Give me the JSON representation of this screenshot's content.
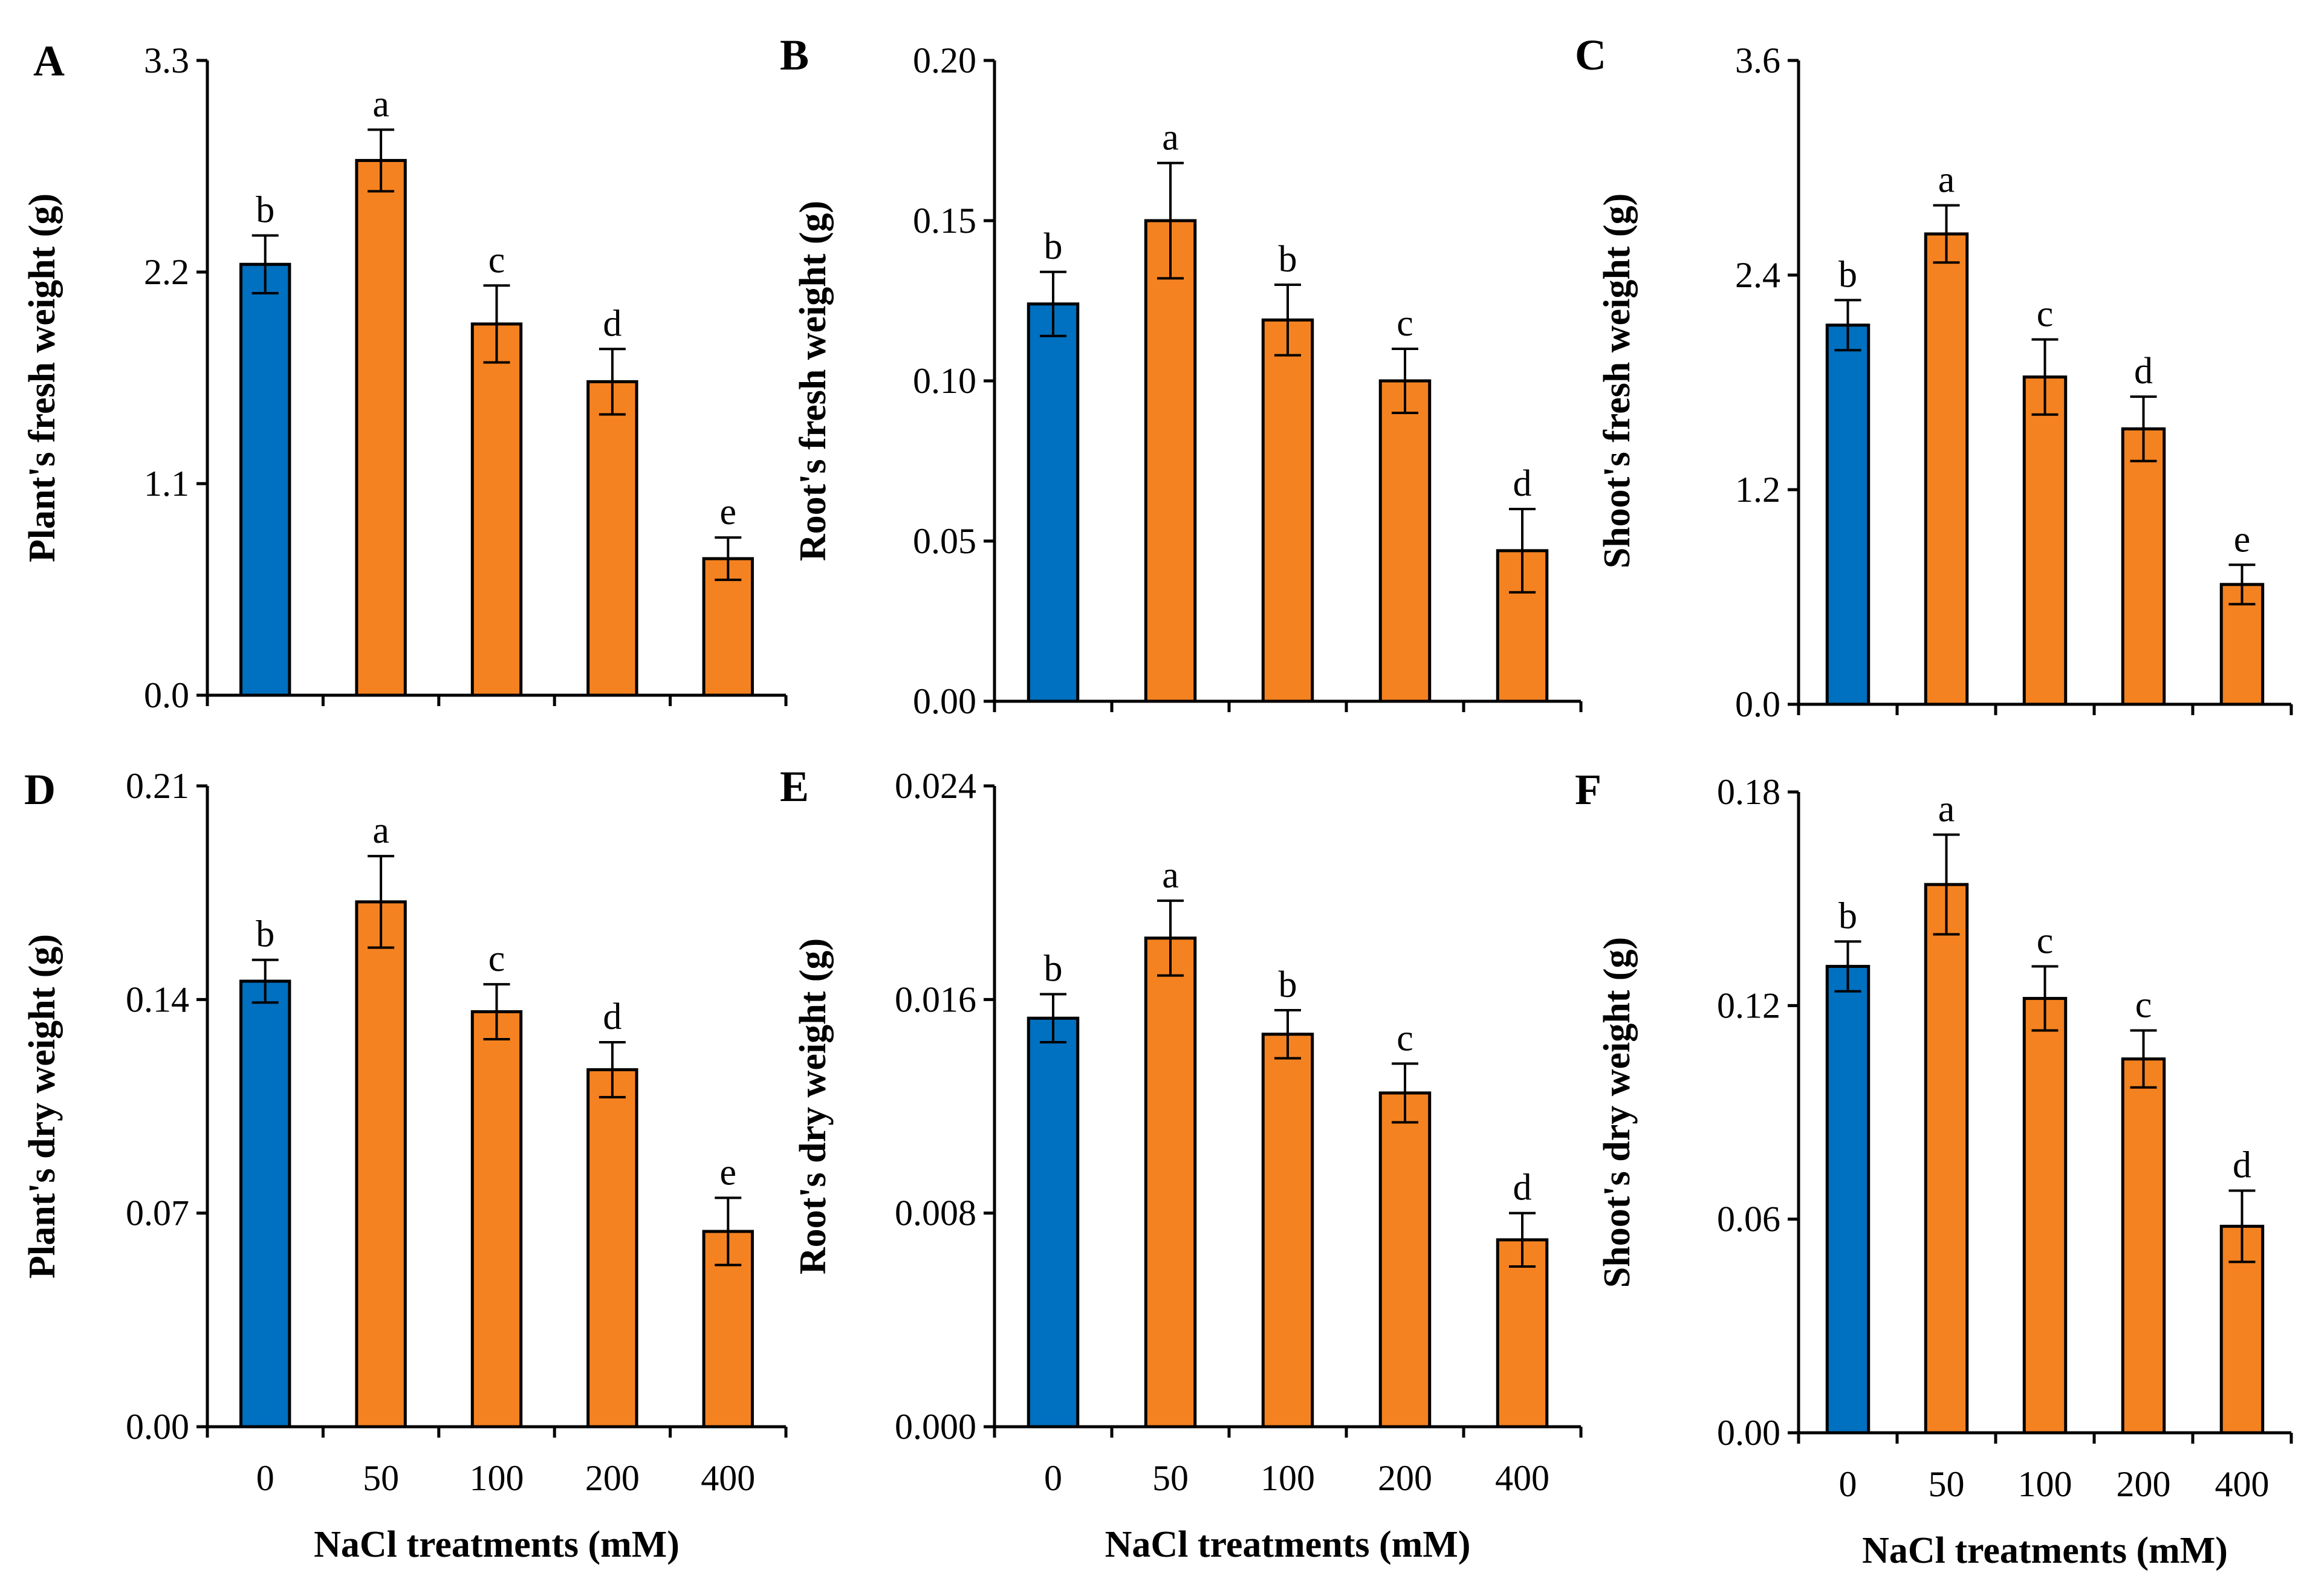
{
  "figure": {
    "colors": {
      "control": "#0070C0",
      "treatment": "#F58220",
      "axis": "#000000"
    },
    "x_categories": [
      "0",
      "50",
      "100",
      "200",
      "400"
    ]
  },
  "chart_data": [
    {
      "panel": "A",
      "type": "bar",
      "title": "",
      "xlabel": "",
      "ylabel": "Plant's fresh weight (g)",
      "categories": [
        "0",
        "50",
        "100",
        "200",
        "400"
      ],
      "values": [
        2.24,
        2.78,
        1.93,
        1.63,
        0.71
      ],
      "errors": [
        0.15,
        0.16,
        0.2,
        0.17,
        0.11
      ],
      "labels": [
        "b",
        "a",
        "c",
        "d",
        "e"
      ],
      "ylim": [
        0,
        3.3
      ],
      "yticks": [
        "0.0",
        "1.1",
        "2.2",
        "3.3"
      ]
    },
    {
      "panel": "B",
      "type": "bar",
      "title": "",
      "xlabel": "",
      "ylabel": "Root's fresh weight (g)",
      "categories": [
        "0",
        "50",
        "100",
        "200",
        "400"
      ],
      "values": [
        0.124,
        0.15,
        0.119,
        0.1,
        0.047
      ],
      "errors": [
        0.01,
        0.018,
        0.011,
        0.01,
        0.013
      ],
      "labels": [
        "b",
        "a",
        "b",
        "c",
        "d"
      ],
      "ylim": [
        0,
        0.2
      ],
      "yticks": [
        "0.00",
        "0.05",
        "0.10",
        "0.15",
        "0.20"
      ]
    },
    {
      "panel": "C",
      "type": "bar",
      "title": "",
      "xlabel": "",
      "ylabel": "Shoot's fresh weight (g)",
      "categories": [
        "0",
        "50",
        "100",
        "200",
        "400"
      ],
      "values": [
        2.12,
        2.63,
        1.83,
        1.54,
        0.67
      ],
      "errors": [
        0.14,
        0.16,
        0.21,
        0.18,
        0.11
      ],
      "labels": [
        "b",
        "a",
        "c",
        "d",
        "e"
      ],
      "ylim": [
        0,
        3.6
      ],
      "yticks": [
        "0.0",
        "1.2",
        "2.4",
        "3.6"
      ]
    },
    {
      "panel": "D",
      "type": "bar",
      "title": "",
      "xlabel": "NaCl treatments (mM)",
      "ylabel": "Plant's dry weight (g)",
      "categories": [
        "0",
        "50",
        "100",
        "200",
        "400"
      ],
      "values": [
        0.146,
        0.172,
        0.136,
        0.117,
        0.064
      ],
      "errors": [
        0.007,
        0.015,
        0.009,
        0.009,
        0.011
      ],
      "labels": [
        "b",
        "a",
        "c",
        "d",
        "e"
      ],
      "ylim": [
        0,
        0.21
      ],
      "yticks": [
        "0.00",
        "0.07",
        "0.14",
        "0.21"
      ]
    },
    {
      "panel": "E",
      "type": "bar",
      "title": "",
      "xlabel": "NaCl treatments (mM)",
      "ylabel": "Root's dry weight (g)",
      "categories": [
        "0",
        "50",
        "100",
        "200",
        "400"
      ],
      "values": [
        0.0153,
        0.0183,
        0.0147,
        0.0125,
        0.007
      ],
      "errors": [
        0.0009,
        0.0014,
        0.0009,
        0.0011,
        0.001
      ],
      "labels": [
        "b",
        "a",
        "b",
        "c",
        "d"
      ],
      "ylim": [
        0,
        0.024
      ],
      "yticks": [
        "0.000",
        "0.008",
        "0.016",
        "0.024"
      ]
    },
    {
      "panel": "F",
      "type": "bar",
      "title": "",
      "xlabel": "NaCl treatments (mM)",
      "ylabel": "Shoot's dry weight (g)",
      "categories": [
        "0",
        "50",
        "100",
        "200",
        "400"
      ],
      "values": [
        0.131,
        0.154,
        0.122,
        0.105,
        0.058
      ],
      "errors": [
        0.007,
        0.014,
        0.009,
        0.008,
        0.01
      ],
      "labels": [
        "b",
        "a",
        "c",
        "c",
        "d"
      ],
      "ylim": [
        0,
        0.18
      ],
      "yticks": [
        "0.00",
        "0.06",
        "0.12",
        "0.18"
      ]
    }
  ]
}
